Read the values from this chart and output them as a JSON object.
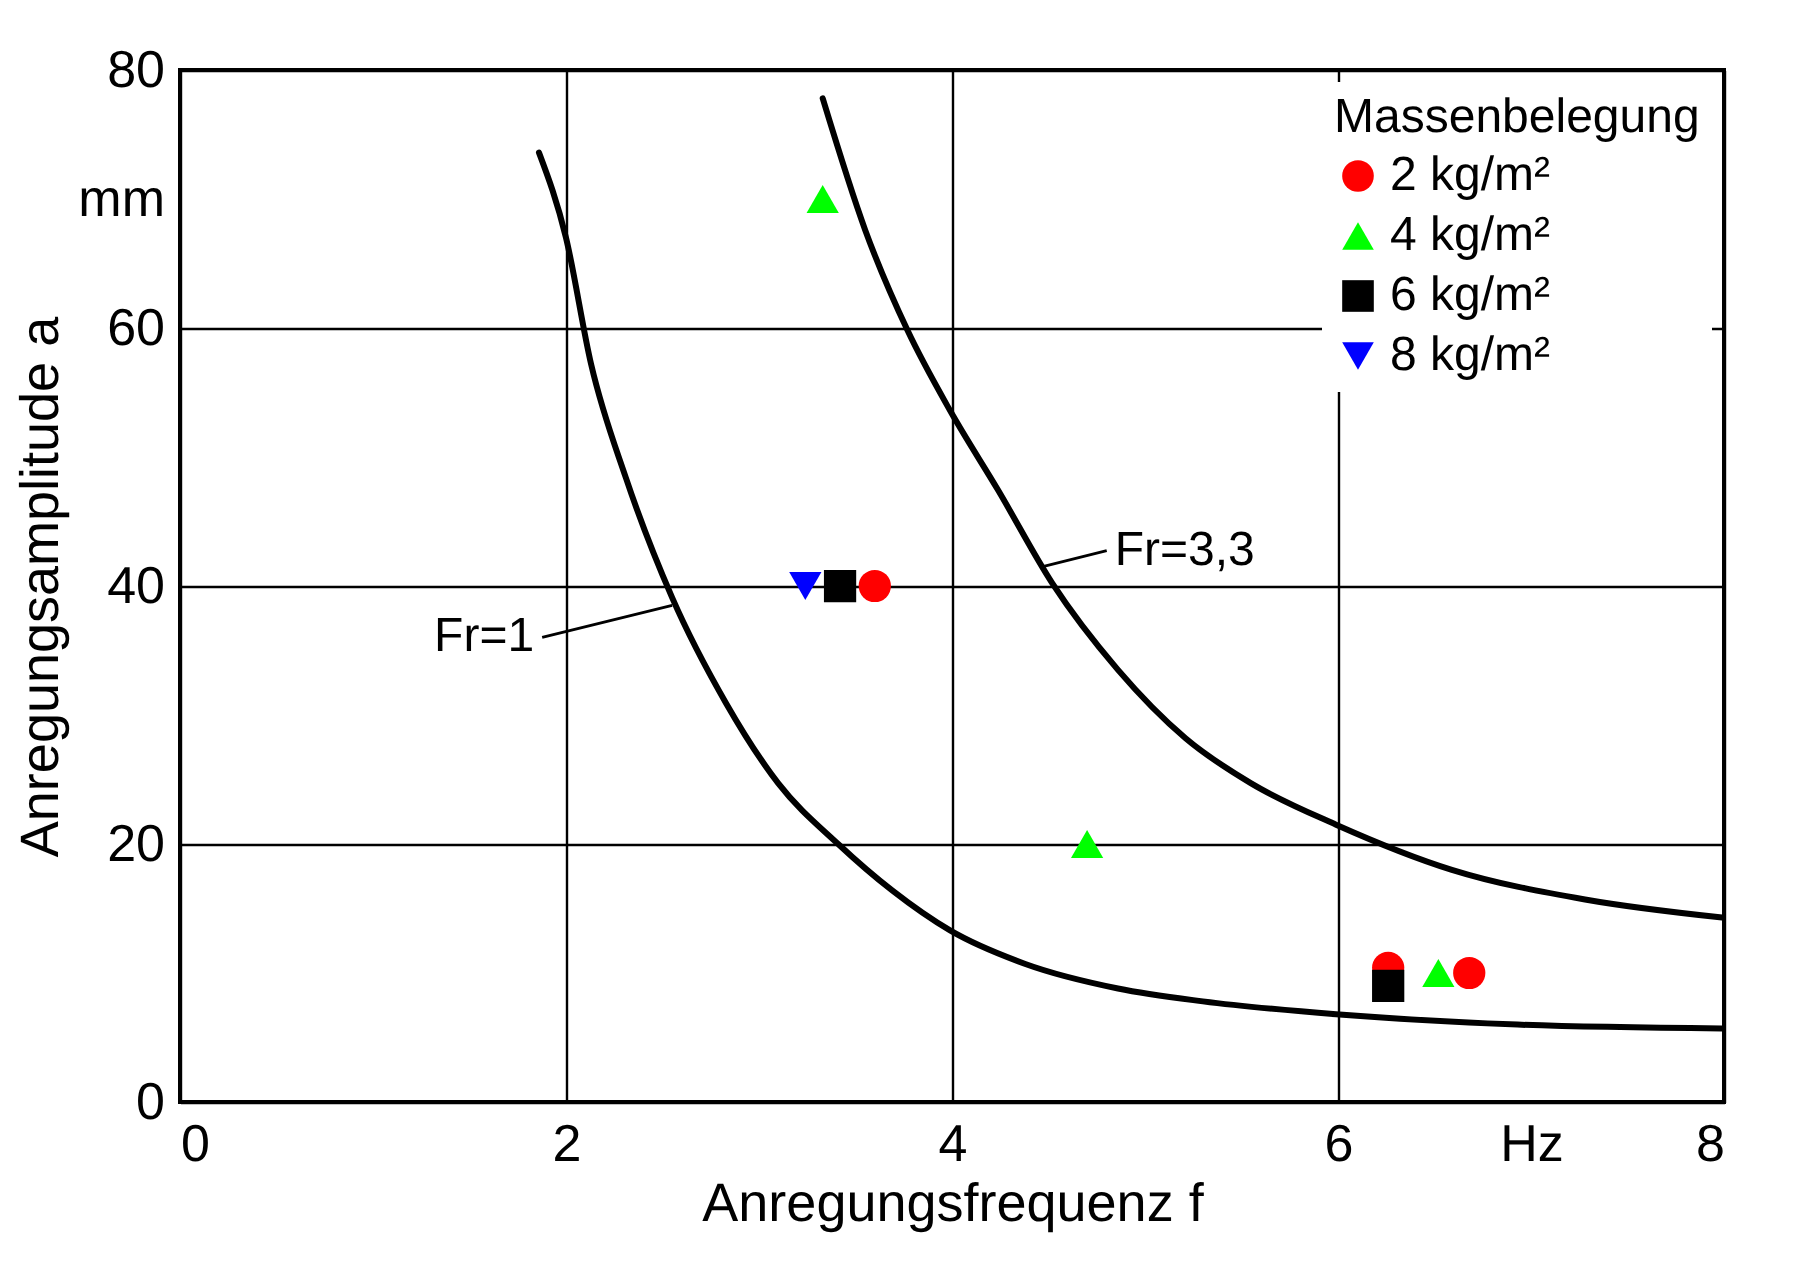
{
  "chart_data": {
    "type": "scatter",
    "xlabel": "Anregungsfrequenz f",
    "ylabel": "Anregungsamplitude a",
    "legend_title": "Massenbelegung",
    "xlim": [
      0,
      8
    ],
    "ylim": [
      0,
      80
    ],
    "xticks": [
      0,
      2,
      4,
      6,
      {
        "value": 7,
        "label": "Hz"
      },
      8
    ],
    "yticks": [
      0,
      20,
      40,
      60,
      {
        "value": 70,
        "label": "mm"
      },
      80
    ],
    "grid": true,
    "legend": "top right",
    "series": [
      {
        "name": "2 kg/m²",
        "color": "#ff0000",
        "marker": "circle",
        "x": [
          3.6,
          6.26,
          6.68
        ],
        "values": [
          40,
          10.4,
          10
        ]
      },
      {
        "name": "4 kg/m²",
        "color": "#00ff00",
        "marker": "triangle",
        "x": [
          3.33,
          4.7,
          6.52
        ],
        "values": [
          70,
          20,
          10
        ]
      },
      {
        "name": "6 kg/m²",
        "color": "#000000",
        "marker": "square",
        "x": [
          3.42,
          6.26
        ],
        "values": [
          40,
          9
        ]
      },
      {
        "name": "8 kg/m²",
        "color": "#0000ff",
        "marker": "triangle-down",
        "x": [
          3.24
        ],
        "values": [
          40
        ]
      },
      {
        "type": "line",
        "color": "#000000",
        "x": [
          1.86,
          2.0,
          2.13,
          2.31,
          2.55,
          2.83,
          3.1,
          3.41,
          3.69,
          3.99,
          4.38,
          4.86,
          5.3,
          5.99,
          6.93,
          7.99
        ],
        "values": [
          73.6,
          67,
          57.2,
          48.4,
          39.1,
          30.9,
          24.7,
          20,
          16.4,
          13.3,
          10.7,
          8.8,
          7.8,
          6.8,
          6.0,
          5.7
        ]
      },
      {
        "type": "line",
        "color": "#000000",
        "x": [
          3.33,
          3.55,
          3.77,
          3.99,
          4.24,
          4.52,
          4.86,
          5.21,
          5.55,
          5.99,
          6.59,
          7.28,
          7.99
        ],
        "values": [
          77.8,
          67.6,
          59.8,
          53.6,
          47.4,
          40.2,
          33.5,
          28.2,
          24.7,
          21.5,
          18,
          15.7,
          14.3
        ]
      }
    ],
    "annotations": [
      {
        "text": "Fr=1",
        "x": 2.55,
        "y": 38.5
      },
      {
        "text": "Fr=3,3",
        "x": 4.47,
        "y": 41.5
      }
    ]
  }
}
